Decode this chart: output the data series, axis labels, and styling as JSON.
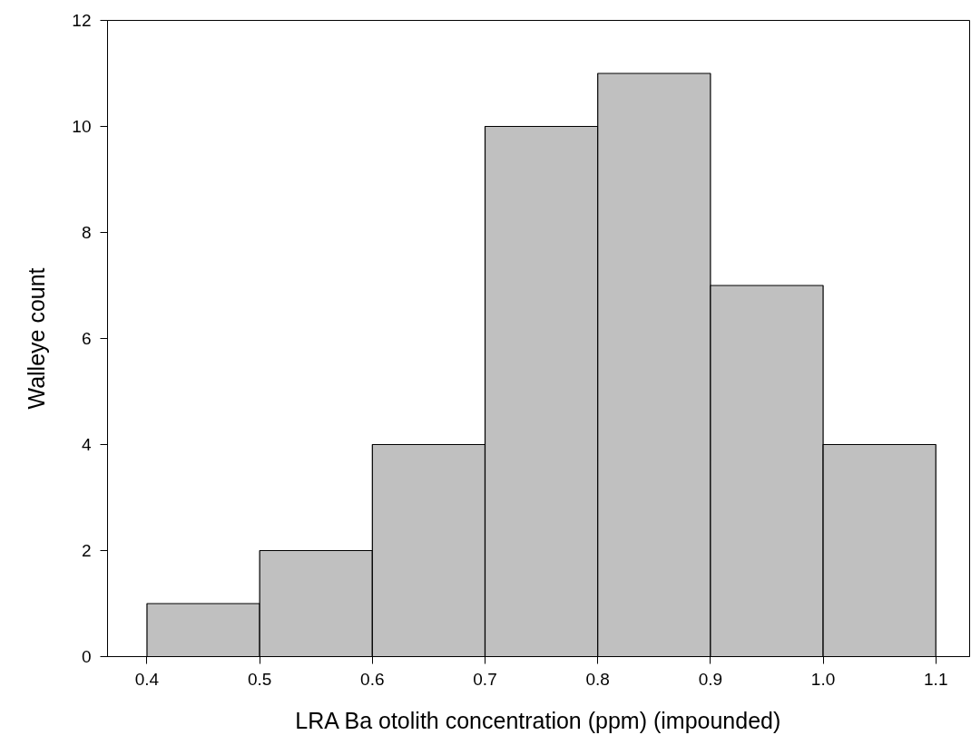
{
  "chart_data": {
    "type": "histogram",
    "xlabel": "LRA Ba otolith concentration (ppm) (impounded)",
    "ylabel": "Walleye count",
    "bins": [
      0.4,
      0.5,
      0.6,
      0.7,
      0.8,
      0.9,
      1.0,
      1.1
    ],
    "values": [
      1,
      2,
      4,
      10,
      11,
      7,
      4
    ],
    "color": "#c0c0c0",
    "xlim": [
      0.365,
      1.13
    ],
    "ylim": [
      0,
      12
    ],
    "xticks": [
      0.4,
      0.5,
      0.6,
      0.7,
      0.8,
      0.9,
      {
        "value": 1.0,
        "label": "1.0"
      },
      1.1
    ],
    "yticks": [
      0,
      2,
      4,
      6,
      8,
      10,
      12
    ]
  }
}
